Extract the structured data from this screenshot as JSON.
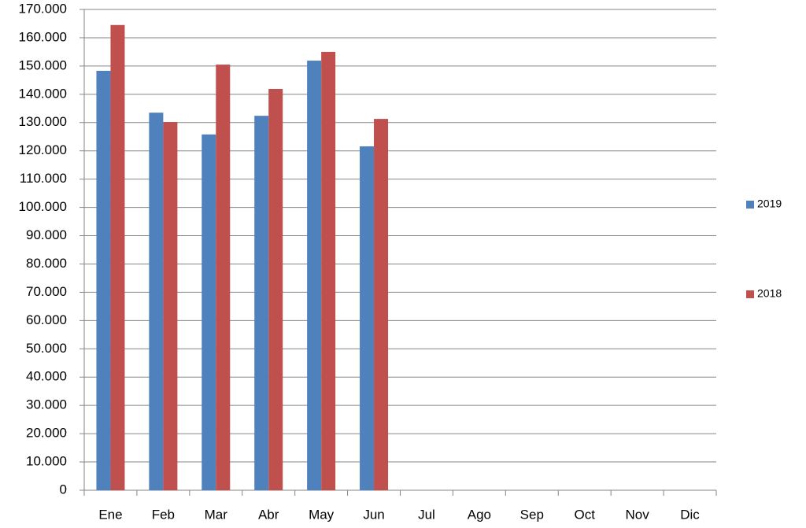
{
  "chart_data": {
    "type": "bar",
    "categories": [
      "Ene",
      "Feb",
      "Mar",
      "Abr",
      "May",
      "Jun",
      "Jul",
      "Ago",
      "Sep",
      "Oct",
      "Nov",
      "Dic"
    ],
    "series": [
      {
        "name": "2019",
        "color": "#4f81bd",
        "values": [
          148300,
          133500,
          125800,
          132400,
          151900,
          121600,
          null,
          null,
          null,
          null,
          null,
          null
        ]
      },
      {
        "name": "2018",
        "color": "#c0504d",
        "values": [
          164500,
          130200,
          150500,
          141900,
          155000,
          131300,
          null,
          null,
          null,
          null,
          null,
          null
        ]
      }
    ],
    "ylim": [
      0,
      170000
    ],
    "yticks": [
      0,
      {
        "value": 10000,
        "label": "10.000"
      },
      {
        "value": 20000,
        "label": "20.000"
      },
      {
        "value": 30000,
        "label": "30.000"
      },
      {
        "value": 40000,
        "label": "40.000"
      },
      {
        "value": 50000,
        "label": "50.000"
      },
      {
        "value": 60000,
        "label": "60.000"
      },
      {
        "value": 70000,
        "label": "70.000"
      },
      {
        "value": 80000,
        "label": "80.000"
      },
      {
        "value": 90000,
        "label": "90.000"
      },
      {
        "value": 100000,
        "label": "100.000"
      },
      {
        "value": 110000,
        "label": "110.000"
      },
      {
        "value": 120000,
        "label": "120.000"
      },
      {
        "value": 130000,
        "label": "130.000"
      },
      {
        "value": 140000,
        "label": "140.000"
      },
      {
        "value": 150000,
        "label": "150.000"
      },
      {
        "value": 160000,
        "label": "160.000"
      },
      {
        "value": 170000,
        "label": "170.000"
      }
    ],
    "grid": true,
    "legend": "right"
  }
}
